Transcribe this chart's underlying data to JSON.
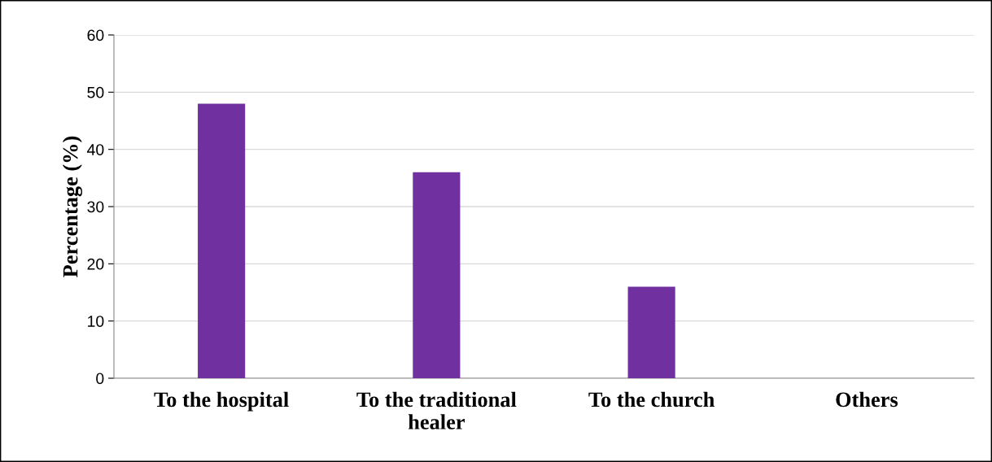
{
  "chart_data": {
    "type": "bar",
    "ylabel": "Percentage (%)",
    "categories": [
      "To the hospital",
      "To the traditional\nhealer",
      "To the church",
      "Others"
    ],
    "values": [
      48,
      36,
      16,
      0
    ],
    "color": "#7030a0",
    "ylim": [
      0,
      60
    ],
    "yticks": [
      0,
      10,
      20,
      30,
      40,
      50,
      60
    ],
    "grid": "y",
    "legend": false
  }
}
